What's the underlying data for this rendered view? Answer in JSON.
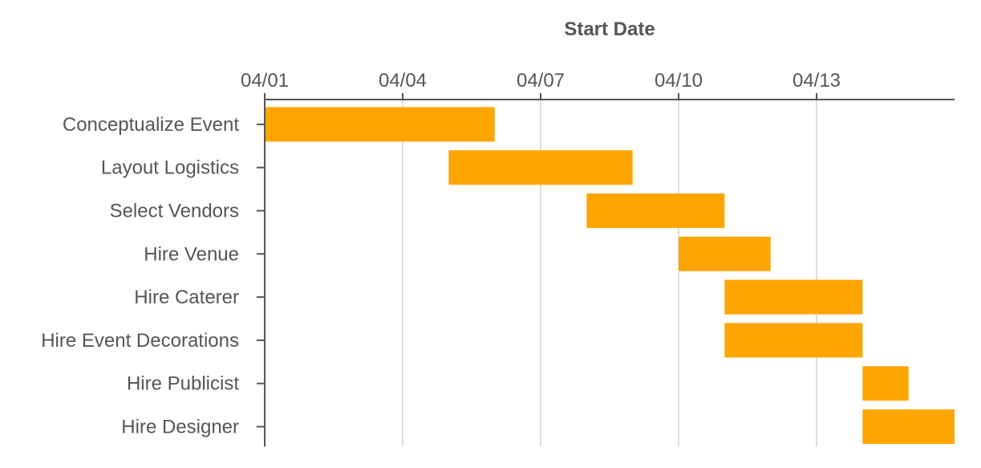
{
  "chart_data": {
    "type": "bar",
    "orientation": "horizontal-gantt",
    "x_title": "Start Date",
    "x_axis": {
      "position": "top",
      "range": [
        "04/01",
        "04/16"
      ],
      "ticks": [
        "04/01",
        "04/04",
        "04/07",
        "04/10",
        "04/13"
      ],
      "grid": true
    },
    "bar_color": "#FFA500",
    "tasks": [
      {
        "label": "Conceptualize Event",
        "start": "04/01",
        "end": "04/06"
      },
      {
        "label": "Layout Logistics",
        "start": "04/05",
        "end": "04/09"
      },
      {
        "label": "Select Vendors",
        "start": "04/08",
        "end": "04/11"
      },
      {
        "label": "Hire Venue",
        "start": "04/10",
        "end": "04/12"
      },
      {
        "label": "Hire Caterer",
        "start": "04/11",
        "end": "04/14"
      },
      {
        "label": "Hire Event Decorations",
        "start": "04/11",
        "end": "04/14"
      },
      {
        "label": "Hire Publicist",
        "start": "04/14",
        "end": "04/15"
      },
      {
        "label": "Hire Designer",
        "start": "04/14",
        "end": "04/16"
      }
    ]
  }
}
